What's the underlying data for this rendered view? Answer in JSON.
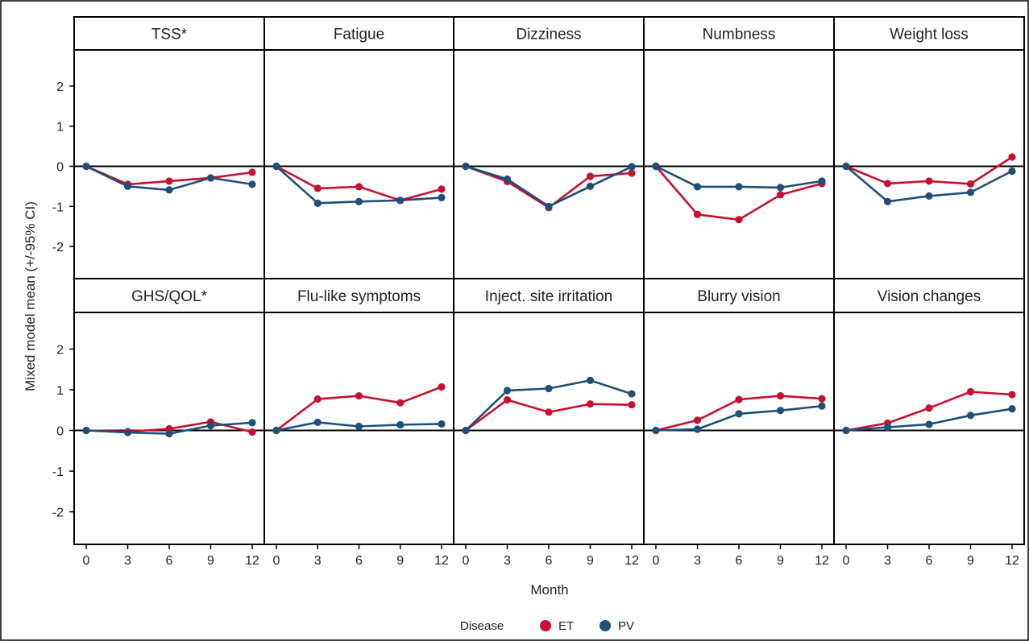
{
  "chart_data": {
    "type": "line",
    "x_values": [
      0,
      3,
      6,
      9,
      12
    ],
    "xlabel": "Month",
    "ylabel": "Mixed model mean (+/-95% CI)",
    "ylim": [
      -2.8,
      2.9
    ],
    "y_ticks": [
      -2,
      -1,
      0,
      1,
      2
    ],
    "y_tick_labels": [
      "-2",
      "-1",
      "0",
      "1",
      "2"
    ],
    "x_tick_labels": [
      "0",
      "3",
      "6",
      "9",
      "12"
    ],
    "reference_line_y": 0,
    "legend": {
      "title": "Disease",
      "placement": "bottom-center",
      "items": [
        {
          "label": "ET",
          "color": "#c8102e"
        },
        {
          "label": "PV",
          "color": "#1f4e79"
        }
      ]
    },
    "panels": [
      {
        "title": "TSS*",
        "series": [
          {
            "name": "ET",
            "values": [
              0,
              -0.45,
              -0.37,
              -0.29,
              -0.15
            ]
          },
          {
            "name": "PV",
            "values": [
              0,
              -0.5,
              -0.59,
              -0.29,
              -0.45
            ]
          }
        ]
      },
      {
        "title": "Fatigue",
        "series": [
          {
            "name": "ET",
            "values": [
              0,
              -0.55,
              -0.51,
              -0.85,
              -0.57
            ]
          },
          {
            "name": "PV",
            "values": [
              0,
              -0.92,
              -0.88,
              -0.85,
              -0.78
            ]
          }
        ]
      },
      {
        "title": "Dizziness",
        "series": [
          {
            "name": "ET",
            "values": [
              0,
              -0.38,
              -1.03,
              -0.25,
              -0.17
            ]
          },
          {
            "name": "PV",
            "values": [
              0,
              -0.32,
              -1.0,
              -0.5,
              -0.01
            ]
          }
        ]
      },
      {
        "title": "Numbness",
        "series": [
          {
            "name": "ET",
            "values": [
              0,
              -1.2,
              -1.33,
              -0.71,
              -0.43
            ]
          },
          {
            "name": "PV",
            "values": [
              0,
              -0.51,
              -0.51,
              -0.53,
              -0.37
            ]
          }
        ]
      },
      {
        "title": "Weight loss",
        "series": [
          {
            "name": "ET",
            "values": [
              0,
              -0.43,
              -0.37,
              -0.44,
              0.23
            ]
          },
          {
            "name": "PV",
            "values": [
              0,
              -0.88,
              -0.74,
              -0.65,
              -0.12
            ]
          }
        ]
      },
      {
        "title": "GHS/QOL*",
        "series": [
          {
            "name": "ET",
            "values": [
              0,
              -0.03,
              0.04,
              0.21,
              -0.04
            ]
          },
          {
            "name": "PV",
            "values": [
              0,
              -0.05,
              -0.08,
              0.12,
              0.19
            ]
          }
        ]
      },
      {
        "title": "Flu-like symptoms",
        "series": [
          {
            "name": "ET",
            "values": [
              0,
              0.77,
              0.85,
              0.68,
              1.07
            ]
          },
          {
            "name": "PV",
            "values": [
              0,
              0.2,
              0.1,
              0.14,
              0.16
            ]
          }
        ]
      },
      {
        "title": "Inject. site irritation",
        "series": [
          {
            "name": "ET",
            "values": [
              0,
              0.75,
              0.45,
              0.65,
              0.63
            ]
          },
          {
            "name": "PV",
            "values": [
              0,
              0.98,
              1.03,
              1.23,
              0.9
            ]
          }
        ]
      },
      {
        "title": "Blurry vision",
        "series": [
          {
            "name": "ET",
            "values": [
              0,
              0.25,
              0.76,
              0.85,
              0.78
            ]
          },
          {
            "name": "PV",
            "values": [
              0,
              0.03,
              0.41,
              0.49,
              0.6
            ]
          }
        ]
      },
      {
        "title": "Vision changes",
        "series": [
          {
            "name": "ET",
            "values": [
              0,
              0.18,
              0.55,
              0.95,
              0.88
            ]
          },
          {
            "name": "PV",
            "values": [
              0,
              0.08,
              0.15,
              0.37,
              0.53
            ]
          }
        ]
      }
    ]
  }
}
